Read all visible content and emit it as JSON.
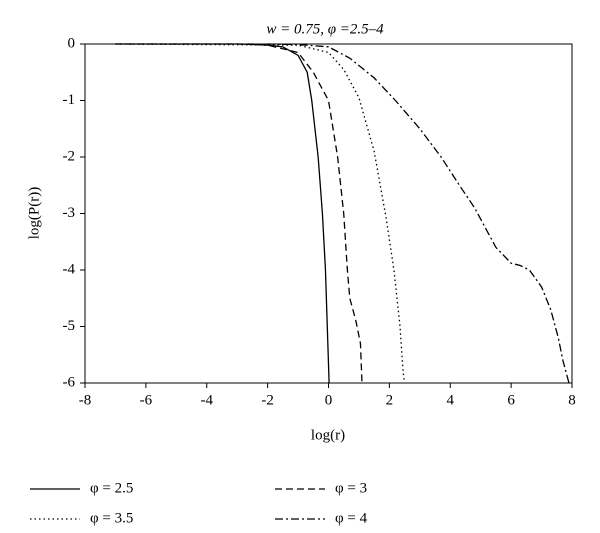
{
  "chart_data": {
    "type": "line",
    "title": "w = 0.75, φ =2.5–4",
    "x_label": "log(r)",
    "y_label": "log(P(r))",
    "xlim": [
      -8,
      8
    ],
    "ylim": [
      -6,
      0
    ],
    "xticks": [
      -8,
      -6,
      -4,
      -2,
      0,
      2,
      4,
      6,
      8
    ],
    "yticks": [
      -6,
      -5,
      -4,
      -3,
      -2,
      -1,
      0
    ],
    "series": [
      {
        "name": "φ = 2.5",
        "color": "#000000",
        "dash": "solid",
        "x": [
          -7,
          -3,
          -2,
          -1.5,
          -1,
          -0.7,
          -0.55,
          -0.34,
          -0.2,
          -0.1,
          -0.04,
          0.02
        ],
        "values": [
          0,
          0,
          -0.02,
          -0.05,
          -0.2,
          -0.5,
          -1,
          -2,
          -3,
          -4,
          -5,
          -6
        ]
      },
      {
        "name": "φ = 3",
        "color": "#000000",
        "dash": "dashed",
        "x": [
          -7,
          -2.5,
          -2,
          -1,
          -0.5,
          0,
          0.3,
          0.5,
          0.62,
          0.7,
          0.9,
          1.05,
          1.1
        ],
        "values": [
          0,
          0,
          -0.02,
          -0.15,
          -0.5,
          -1,
          -2,
          -3,
          -4,
          -4.5,
          -4.9,
          -5.3,
          -6
        ]
      },
      {
        "name": "φ = 3.5",
        "color": "#000000",
        "dash": "dotted",
        "x": [
          -7,
          -1,
          0,
          0.5,
          1,
          1.5,
          1.9,
          2.15,
          2.35,
          2.45,
          2.5
        ],
        "values": [
          0,
          -0.02,
          -0.15,
          -0.45,
          -0.95,
          -1.9,
          -3.1,
          -4,
          -5,
          -5.8,
          -6
        ]
      },
      {
        "name": "φ = 4",
        "color": "#000000",
        "dash": "dashdot",
        "x": [
          -2,
          -1,
          0,
          0.7,
          1.5,
          2.2,
          3,
          3.7,
          4.3,
          4.8,
          5.1,
          5.5,
          6,
          6.3,
          6.6,
          7,
          7.3,
          7.55,
          7.7,
          7.9
        ],
        "values": [
          0,
          -0.01,
          -0.05,
          -0.25,
          -0.6,
          -1,
          -1.5,
          -2,
          -2.5,
          -2.9,
          -3.2,
          -3.6,
          -3.88,
          -3.92,
          -4,
          -4.3,
          -4.7,
          -5.2,
          -5.6,
          -6
        ]
      }
    ]
  }
}
